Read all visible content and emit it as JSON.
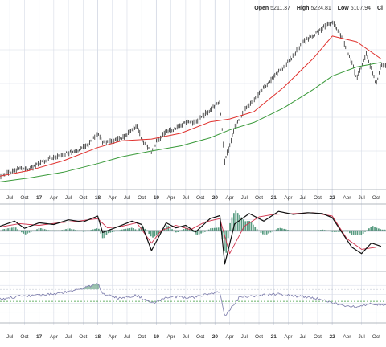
{
  "header": {
    "open_label": "Open",
    "open_value": "5211.37",
    "high_label": "High",
    "high_value": "5224.81",
    "low_label": "Low",
    "low_value": "5107.94",
    "close_label": "Cl"
  },
  "colors": {
    "price": "#111111",
    "ma_fast": "#e0302c",
    "ma_slow": "#3a9a3a",
    "macd_line": "#111111",
    "macd_signal": "#d0304a",
    "histogram": "#3a8a6a",
    "ratio_line": "#7a7aaa",
    "ratio_fill": "#5a9a7a",
    "ref_line": "#3a9a3a",
    "grid": "#d6dbe6",
    "axis_text": "#333333"
  },
  "chart_data": {
    "type": "line",
    "x_axis": {
      "type": "time",
      "tick_labels": [
        "Jul",
        "Oct",
        "17",
        "Apr",
        "Jul",
        "Oct",
        "18",
        "Apr",
        "Jul",
        "Oct",
        "19",
        "Apr",
        "Jul",
        "Oct",
        "20",
        "Apr",
        "Jul",
        "Oct",
        "21",
        "Apr",
        "Jul",
        "Oct",
        "22",
        "Apr",
        "Jul",
        "Oct"
      ],
      "tick_dates": [
        "2016-07",
        "2016-10",
        "2017-01",
        "2017-04",
        "2017-07",
        "2017-10",
        "2018-01",
        "2018-04",
        "2018-07",
        "2018-10",
        "2019-01",
        "2019-04",
        "2019-07",
        "2019-10",
        "2020-01",
        "2020-04",
        "2020-07",
        "2020-10",
        "2021-01",
        "2021-04",
        "2021-07",
        "2021-10",
        "2022-01",
        "2022-04",
        "2022-07",
        "2022-10"
      ]
    },
    "grid": true,
    "panels": [
      {
        "name": "price",
        "series": [
          {
            "role": "price",
            "style": "ohlc-bars",
            "x": [
              "2016-05",
              "2016-07",
              "2016-09",
              "2016-11",
              "2017-01",
              "2017-03",
              "2017-05",
              "2017-07",
              "2017-09",
              "2017-11",
              "2018-01",
              "2018-02",
              "2018-04",
              "2018-06",
              "2018-08",
              "2018-09",
              "2018-10",
              "2018-12",
              "2019-01",
              "2019-03",
              "2019-05",
              "2019-07",
              "2019-09",
              "2019-11",
              "2020-01",
              "2020-02",
              "2020-03",
              "2020-05",
              "2020-07",
              "2020-09",
              "2020-11",
              "2021-01",
              "2021-03",
              "2021-05",
              "2021-07",
              "2021-09",
              "2021-11",
              "2022-01",
              "2022-03",
              "2022-05",
              "2022-06",
              "2022-08",
              "2022-10",
              "2022-11"
            ],
            "y": [
              2050,
              2120,
              2180,
              2170,
              2270,
              2360,
              2400,
              2460,
              2500,
              2600,
              2800,
              2650,
              2660,
              2720,
              2860,
              2920,
              2700,
              2450,
              2650,
              2820,
              2880,
              3000,
              2990,
              3140,
              3280,
              3360,
              2300,
              2900,
              3200,
              3400,
              3600,
              3800,
              3950,
              4150,
              4400,
              4500,
              4650,
              4750,
              4450,
              4050,
              3750,
              4200,
              3650,
              4000
            ]
          },
          {
            "role": "ma_fast",
            "style": "line",
            "x": [
              "2016-05",
              "2016-11",
              "2017-06",
              "2018-01",
              "2018-06",
              "2018-12",
              "2019-06",
              "2019-12",
              "2020-04",
              "2020-09",
              "2021-03",
              "2021-09",
              "2022-01",
              "2022-06",
              "2022-11"
            ],
            "y": [
              2050,
              2150,
              2320,
              2550,
              2670,
              2700,
              2800,
              3000,
              3050,
              3180,
              3600,
              4100,
              4500,
              4400,
              4100
            ]
          },
          {
            "role": "ma_slow",
            "style": "line",
            "x": [
              "2016-05",
              "2016-11",
              "2017-06",
              "2018-01",
              "2018-06",
              "2018-12",
              "2019-06",
              "2019-12",
              "2020-04",
              "2020-09",
              "2021-03",
              "2021-09",
              "2022-01",
              "2022-06",
              "2022-11"
            ],
            "y": [
              1950,
              2020,
              2120,
              2270,
              2390,
              2490,
              2580,
              2720,
              2860,
              2990,
              3240,
              3560,
              3800,
              3960,
              4040
            ]
          }
        ],
        "ylim": [
          1900,
          4850
        ]
      },
      {
        "name": "macd",
        "series": [
          {
            "role": "macd_line",
            "style": "line",
            "x": [
              "2016-05",
              "2016-08",
              "2016-10",
              "2017-01",
              "2017-04",
              "2017-07",
              "2017-10",
              "2018-01",
              "2018-02",
              "2018-05",
              "2018-08",
              "2018-10",
              "2018-12",
              "2019-03",
              "2019-05",
              "2019-07",
              "2019-09",
              "2019-12",
              "2020-02",
              "2020-03",
              "2020-05",
              "2020-08",
              "2020-11",
              "2021-02",
              "2021-05",
              "2021-08",
              "2021-11",
              "2022-01",
              "2022-03",
              "2022-05",
              "2022-07",
              "2022-09",
              "2022-11"
            ],
            "y": [
              10,
              22,
              5,
              18,
              14,
              25,
              20,
              34,
              -5,
              8,
              22,
              14,
              -48,
              18,
              6,
              12,
              -4,
              28,
              35,
              -80,
              15,
              40,
              22,
              45,
              38,
              42,
              40,
              30,
              -5,
              -40,
              -55,
              -30,
              -38
            ]
          },
          {
            "role": "macd_signal",
            "style": "line",
            "x": [
              "2016-05",
              "2016-09",
              "2017-01",
              "2017-05",
              "2017-09",
              "2018-01",
              "2018-03",
              "2018-06",
              "2018-09",
              "2018-12",
              "2019-02",
              "2019-05",
              "2019-08",
              "2019-11",
              "2020-02",
              "2020-04",
              "2020-07",
              "2020-10",
              "2021-01",
              "2021-05",
              "2021-09",
              "2022-01",
              "2022-04",
              "2022-07",
              "2022-10"
            ],
            "y": [
              8,
              16,
              12,
              18,
              22,
              28,
              6,
              10,
              18,
              -30,
              0,
              12,
              2,
              20,
              28,
              -55,
              10,
              32,
              38,
              40,
              42,
              34,
              -20,
              -45,
              -40
            ]
          }
        ],
        "ylim": [
          -90,
          55
        ]
      },
      {
        "name": "ratio",
        "series": [
          {
            "role": "ratio",
            "style": "line",
            "x": [
              "2016-05",
              "2016-09",
              "2017-01",
              "2017-05",
              "2017-09",
              "2018-01",
              "2018-02",
              "2018-05",
              "2018-09",
              "2018-12",
              "2019-04",
              "2019-08",
              "2019-12",
              "2020-02",
              "2020-03",
              "2020-06",
              "2020-10",
              "2021-02",
              "2021-06",
              "2021-10",
              "2022-02",
              "2022-06",
              "2022-09",
              "2022-11"
            ],
            "y": [
              2,
              5,
              6,
              8,
              12,
              18,
              8,
              3,
              6,
              -2,
              5,
              3,
              8,
              9,
              -15,
              4,
              6,
              7,
              5,
              3,
              -3,
              -6,
              -2,
              -4
            ]
          },
          {
            "role": "reference",
            "style": "dashed",
            "y": 0
          }
        ],
        "ylim": [
          -20,
          25
        ]
      }
    ]
  }
}
